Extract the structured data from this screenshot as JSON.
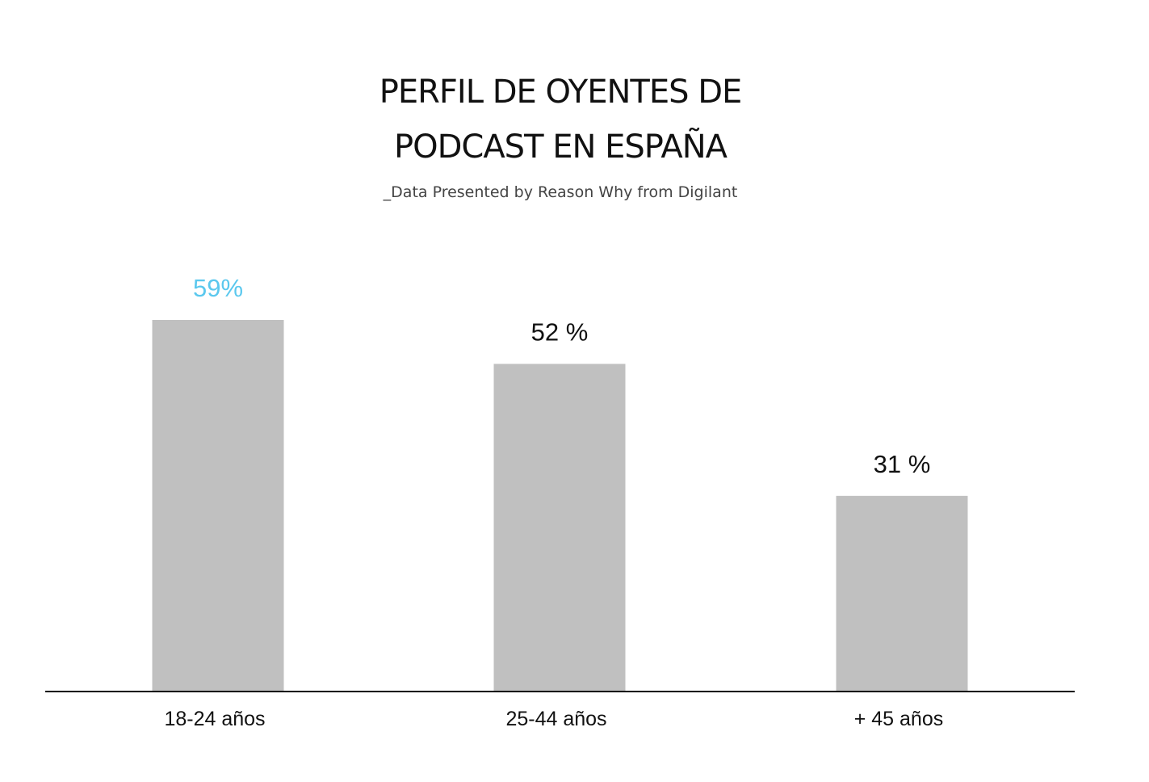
{
  "chart_data": {
    "type": "bar",
    "title": "PERFIL DE OYENTES DE PODCAST EN ESPAÑA",
    "title_lines": [
      "PERFIL DE OYENTES DE",
      "PODCAST EN ESPAÑA"
    ],
    "subtitle": "_Data Presented by Reason Why from Digilant",
    "categories": [
      "18-24 años",
      "25-44 años",
      "+ 45 años"
    ],
    "values": [
      59,
      52,
      31
    ],
    "data_labels": [
      "59%",
      "52 %",
      "31 %"
    ],
    "ylim": [
      0,
      59
    ],
    "grid": false,
    "colors": {
      "bar": "#c0c0c0",
      "highlight_label": "#5bc8ee",
      "label": "#111111",
      "baseline": "#000000"
    }
  }
}
